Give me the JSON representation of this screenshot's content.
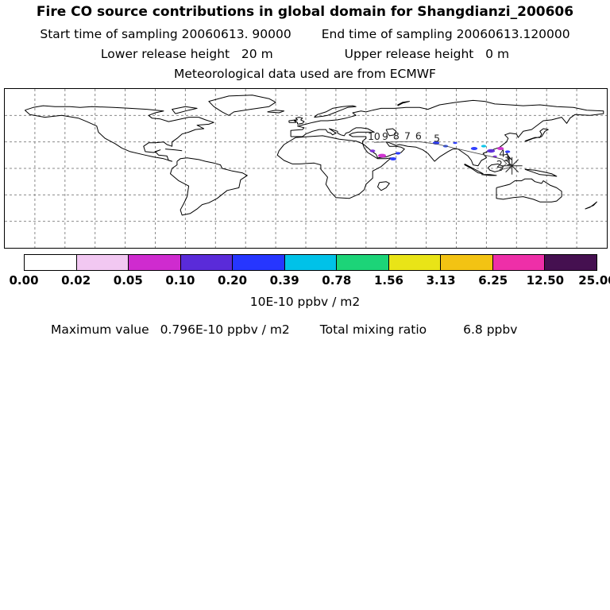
{
  "header": {
    "title": "Fire CO source contributions in global domain for Shangdianzi_200606",
    "start_time": "Start time of sampling 20060613. 90000",
    "end_time": "End time of sampling 20060613.120000",
    "lower_release": "Lower release height   20 m",
    "upper_release": "Upper release height   0 m",
    "met_source": "Meteorological data used are from ECMWF"
  },
  "footer": {
    "units_label": "10E-10 ppbv / m2",
    "max_label": "Maximum value",
    "max_value": "0.796E-10 ppbv / m2",
    "tmr_label": "Total mixing ratio",
    "tmr_value": "6.8 ppbv"
  },
  "chart_data": {
    "type": "heatmap",
    "title": "Fire CO source contributions in global domain for Shangdianzi_200606",
    "projection": "equirectangular",
    "lon_range": [
      -180,
      180
    ],
    "lat_range": [
      -90,
      90
    ],
    "grid": {
      "lon_step": 18,
      "lat_step": 30,
      "style": "dashed"
    },
    "colorbar": {
      "units": "10E-10 ppbv / m2",
      "boundaries": [
        "0.00",
        "0.02",
        "0.05",
        "0.10",
        "0.20",
        "0.39",
        "0.78",
        "1.56",
        "3.13",
        "6.25",
        "12.50",
        "25.00"
      ],
      "colors": [
        "#ffffff",
        "#f2c8f2",
        "#cf2bcf",
        "#5a2bd9",
        "#2636ff",
        "#00c2e8",
        "#1cd478",
        "#e9e417",
        "#f3c313",
        "#ee2fa8",
        "#451050"
      ]
    },
    "max_value_text": "0.796E-10 ppbv / m2",
    "total_mixing_ratio_text": "6.8 ppbv",
    "receptor_marker": {
      "lon": 123.3,
      "lat": 2.9
    },
    "trajectory_days": [
      {
        "day": 10,
        "lon": 40.8,
        "lat": 29.5
      },
      {
        "day": 9,
        "lon": 47.5,
        "lat": 29.8
      },
      {
        "day": 8,
        "lon": 54.1,
        "lat": 30.0
      },
      {
        "day": 7,
        "lon": 60.8,
        "lat": 30.2
      },
      {
        "day": 6,
        "lon": 67.4,
        "lat": 30.3
      },
      {
        "day": 5,
        "lon": 78.4,
        "lat": 27.5
      },
      {
        "day": 4,
        "lon": 117.4,
        "lat": 10.5
      },
      {
        "day": 3,
        "lon": 120.0,
        "lat": 5.5
      },
      {
        "day": 2,
        "lon": 115.8,
        "lat": -2.0
      },
      {
        "day": 1,
        "lon": 121.5,
        "lat": 1.0
      }
    ],
    "patches": [
      {
        "lon": 39.9,
        "lat": 19.8,
        "rx": 1.6,
        "ry": 1.6,
        "color": "#7b2bd9"
      },
      {
        "lon": 45.6,
        "lat": 14.4,
        "rx": 2.4,
        "ry": 2.2,
        "color": "#cf2bcf"
      },
      {
        "lon": 52.2,
        "lat": 10.8,
        "rx": 2.0,
        "ry": 1.8,
        "color": "#2636ff"
      },
      {
        "lon": 55.1,
        "lat": 17.1,
        "rx": 1.5,
        "ry": 1.4,
        "color": "#2636ff"
      },
      {
        "lon": 77.9,
        "lat": 28.8,
        "rx": 2.0,
        "ry": 1.8,
        "color": "#2636ff"
      },
      {
        "lon": 83.6,
        "lat": 25.2,
        "rx": 1.5,
        "ry": 1.4,
        "color": "#3355ff"
      },
      {
        "lon": 89.3,
        "lat": 28.8,
        "rx": 1.3,
        "ry": 1.2,
        "color": "#2636ff"
      },
      {
        "lon": 100.7,
        "lat": 22.5,
        "rx": 2.0,
        "ry": 1.8,
        "color": "#2636ff"
      },
      {
        "lon": 106.4,
        "lat": 25.2,
        "rx": 1.5,
        "ry": 1.4,
        "color": "#00c2e8"
      },
      {
        "lon": 110.7,
        "lat": 19.8,
        "rx": 2.4,
        "ry": 2.0,
        "color": "#5a2bd9"
      },
      {
        "lon": 116.4,
        "lat": 22.5,
        "rx": 2.0,
        "ry": 1.8,
        "color": "#cf2bcf"
      },
      {
        "lon": 120.7,
        "lat": 18.9,
        "rx": 1.5,
        "ry": 1.4,
        "color": "#2636ff"
      },
      {
        "lon": 113.1,
        "lat": 13.5,
        "rx": 1.3,
        "ry": 1.2,
        "color": "#7b2bd9"
      }
    ]
  }
}
